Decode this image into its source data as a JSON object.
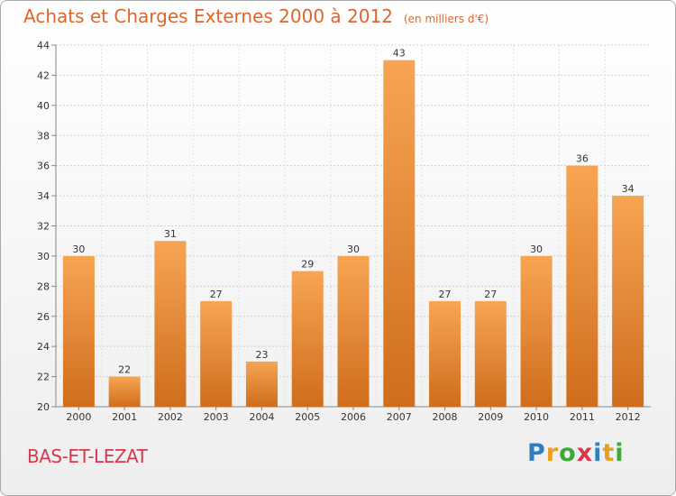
{
  "header": {
    "title": "Achats et Charges Externes 2000 à 2012",
    "unit": "(en milliers d'€)"
  },
  "footer": {
    "commune": "BAS-ET-LEZAT",
    "brand": "Proxiti",
    "brand_letters": [
      {
        "ch": "P",
        "color": "#2f7fc1"
      },
      {
        "ch": "r",
        "color": "#e8a020"
      },
      {
        "ch": "o",
        "color": "#3fa83a"
      },
      {
        "ch": "x",
        "color": "#d8384e"
      },
      {
        "ch": "i",
        "color": "#2f7fc1"
      },
      {
        "ch": "t",
        "color": "#e8a020"
      },
      {
        "ch": "i",
        "color": "#3fa83a"
      }
    ]
  },
  "colors": {
    "title": "#e0652a",
    "bar_top": "#f7a553",
    "bar_bottom": "#cf6d1c",
    "axis_text": "#333333"
  },
  "chart_data": {
    "type": "bar",
    "categories": [
      "2000",
      "2001",
      "2002",
      "2003",
      "2004",
      "2005",
      "2006",
      "2007",
      "2008",
      "2009",
      "2010",
      "2011",
      "2012"
    ],
    "values": [
      30,
      22,
      31,
      27,
      23,
      29,
      30,
      43,
      27,
      27,
      30,
      36,
      34
    ],
    "ylim": [
      20,
      44
    ],
    "yticks": [
      20,
      22,
      24,
      26,
      28,
      30,
      32,
      34,
      36,
      38,
      40,
      42,
      44
    ],
    "grid": true,
    "data_labels": true
  }
}
